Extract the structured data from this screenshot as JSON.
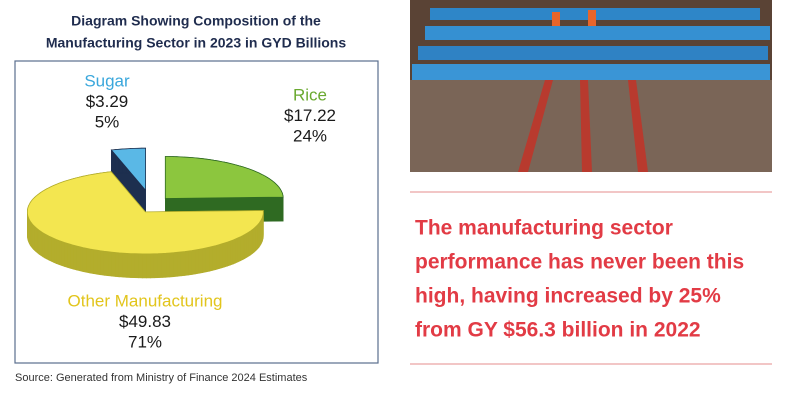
{
  "chart_data": {
    "type": "pie",
    "title": [
      "Diagram Showing Composition of the",
      "Manufacturing Sector in 2023 in GYD Billions"
    ],
    "categories": [
      "Sugar",
      "Rice",
      "Other Manufacturing"
    ],
    "values": [
      3.29,
      17.22,
      49.83
    ],
    "value_labels": [
      "$3.29",
      "$17.22",
      "$49.83"
    ],
    "shares": [
      5,
      24,
      71
    ],
    "share_labels": [
      "5%",
      "24%",
      "71%"
    ],
    "colors": [
      "#5ab8e6",
      "#8cc63e",
      "#f3e650"
    ],
    "side_colors": [
      "#1d2f4f",
      "#2f6a22",
      "#b3ad2c"
    ],
    "label_colors": [
      "#3aa7dc",
      "#6aa930",
      "#e2c51c"
    ],
    "source": "Source: Generated from Ministry of Finance 2024 Estimates"
  },
  "quote": [
    "The manufacturing sector",
    "performance has never been this",
    "high, having increased by 25%",
    "from GY $56.3 billion in 2022"
  ]
}
